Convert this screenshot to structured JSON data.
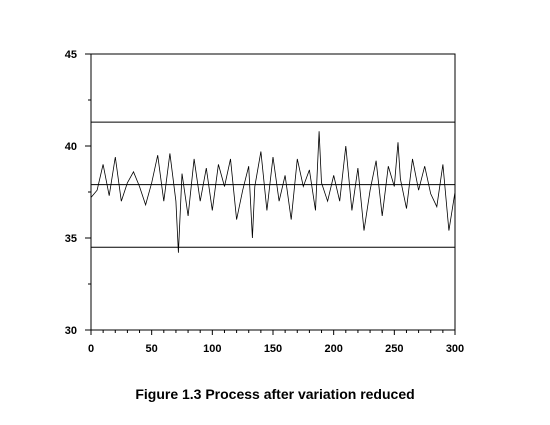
{
  "caption": "Figure 1.3 Process after variation reduced",
  "chart_data": {
    "type": "line",
    "title": "",
    "xlabel": "",
    "ylabel": "",
    "xlim": [
      0,
      300
    ],
    "ylim": [
      30,
      45
    ],
    "x_ticks": [
      0,
      50,
      100,
      150,
      200,
      250,
      300
    ],
    "y_ticks": [
      30,
      35,
      40,
      45
    ],
    "grid": false,
    "reference_lines": [
      {
        "role": "upper-control-limit",
        "y": 41.3
      },
      {
        "role": "center-line",
        "y": 37.9
      },
      {
        "role": "lower-control-limit",
        "y": 34.5
      }
    ],
    "series": [
      {
        "x": [
          0,
          5,
          10,
          15,
          20,
          25,
          30,
          35,
          40,
          45,
          50,
          55,
          60,
          65,
          70,
          72,
          75,
          80,
          85,
          90,
          95,
          100,
          105,
          110,
          115,
          120,
          125,
          130,
          133,
          135,
          140,
          145,
          150,
          155,
          160,
          165,
          170,
          175,
          180,
          185,
          188,
          190,
          195,
          200,
          205,
          210,
          215,
          220,
          225,
          230,
          235,
          240,
          245,
          250,
          253,
          255,
          260,
          265,
          270,
          275,
          280,
          285,
          290,
          295,
          300
        ],
        "values": [
          37.2,
          37.6,
          39.0,
          37.3,
          39.4,
          37.0,
          38.0,
          38.6,
          37.8,
          36.8,
          38.0,
          39.5,
          37.0,
          39.6,
          37.0,
          34.2,
          38.5,
          36.2,
          39.3,
          37.0,
          38.8,
          36.5,
          39.0,
          37.8,
          39.3,
          36.0,
          37.6,
          38.9,
          35.0,
          37.8,
          39.7,
          36.5,
          39.4,
          37.0,
          38.4,
          36.0,
          39.3,
          37.8,
          38.7,
          36.5,
          40.8,
          38.0,
          37.0,
          38.4,
          37.0,
          40.0,
          36.5,
          38.8,
          35.4,
          37.6,
          39.2,
          36.2,
          38.9,
          37.8,
          40.2,
          38.2,
          36.6,
          39.3,
          37.6,
          38.9,
          37.4,
          36.7,
          39.0,
          35.4,
          37.5
        ]
      }
    ]
  }
}
